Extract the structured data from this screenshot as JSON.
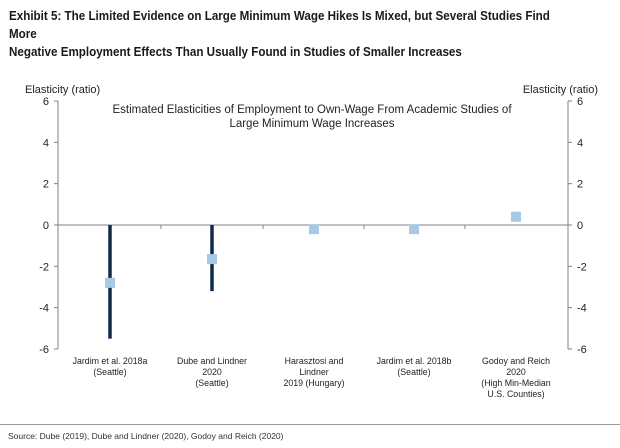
{
  "exhibit": {
    "title_line1": "Exhibit 5: The Limited Evidence on Large Minimum Wage Hikes Is Mixed, but Several Studies Find More",
    "title_line2": "Negative Employment Effects Than Usually Found in Studies of Smaller Increases"
  },
  "source": "Source: Dube (2019), Dube and Lindner (2020), Godoy and Reich (2020)",
  "chart_data": {
    "type": "scatter",
    "title_lines": [
      "Estimated Elasticities of Employment to Own-Wage From Academic Studies of",
      "Large Minimum Wage Increases"
    ],
    "ylabel_left": "Elasticity (ratio)",
    "ylabel_right": "Elasticity (ratio)",
    "ylim": [
      -6,
      6
    ],
    "yticks": [
      6,
      4,
      2,
      0,
      -2,
      -4,
      -6
    ],
    "categories": [
      [
        "Jardim et al. 2018a",
        "(Seattle)"
      ],
      [
        "Dube and Lindner",
        "2020",
        "(Seattle)"
      ],
      [
        "Harasztosi and",
        "Lindner",
        "2019 (Hungary)"
      ],
      [
        "Jardim et al. 2018b",
        "(Seattle)"
      ],
      [
        "Godoy and Reich",
        "2020",
        "(High Min-Median",
        "U.S. Counties)"
      ]
    ],
    "series": [
      {
        "values": [
          -2.8,
          -1.65,
          -0.2,
          -0.2,
          0.4
        ],
        "low": [
          -5.5,
          -3.2,
          null,
          null,
          null
        ],
        "high": [
          0,
          0,
          null,
          null,
          null
        ]
      }
    ],
    "colors": {
      "marker": "#a8c8e6",
      "range": "#102a4a",
      "axis": "#808080"
    }
  }
}
